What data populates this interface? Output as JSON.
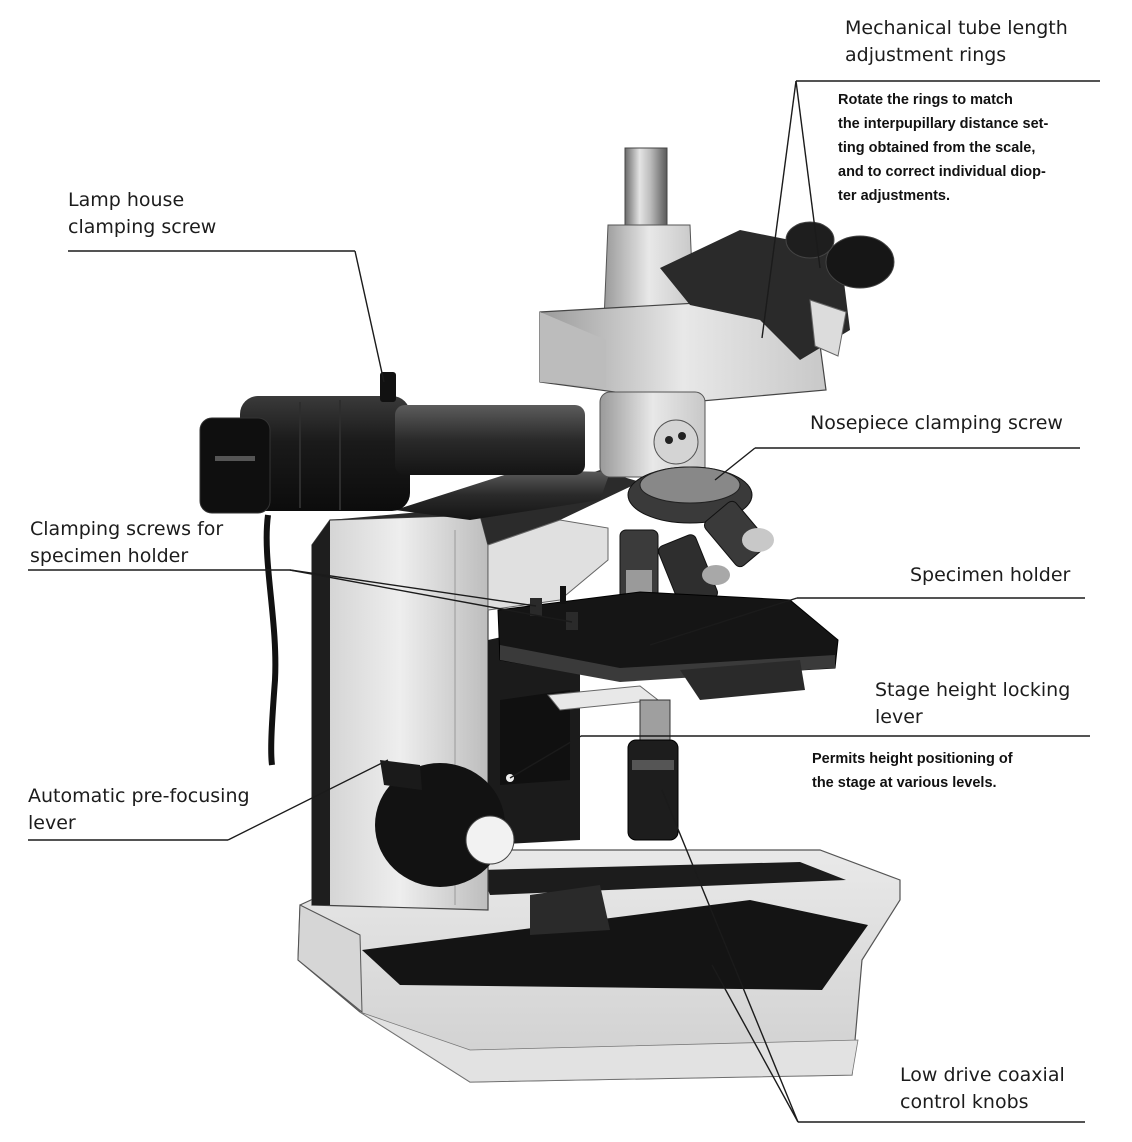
{
  "callouts": {
    "tube_rings": {
      "title": [
        "Mechanical tube length",
        "adjustment rings"
      ],
      "note": [
        "Rotate the rings to match",
        "the interpupillary distance set-",
        "ting obtained from the scale,",
        "and to correct individual diop-",
        "ter adjustments."
      ]
    },
    "lamp_house": {
      "title": [
        "Lamp house",
        "clamping screw"
      ]
    },
    "nosepiece": {
      "title": [
        "Nosepiece clamping screw"
      ]
    },
    "clamping_screws": {
      "title": [
        "Clamping screws for",
        "specimen holder"
      ]
    },
    "specimen_holder": {
      "title": [
        "Specimen holder"
      ]
    },
    "stage_height": {
      "title": [
        "Stage height locking",
        "lever"
      ],
      "note": [
        "Permits height positioning of",
        "the stage at various levels."
      ]
    },
    "prefocusing": {
      "title": [
        "Automatic pre-focusing",
        "lever"
      ]
    },
    "coaxial_knobs": {
      "title": [
        "Low drive coaxial",
        "control knobs"
      ]
    }
  }
}
